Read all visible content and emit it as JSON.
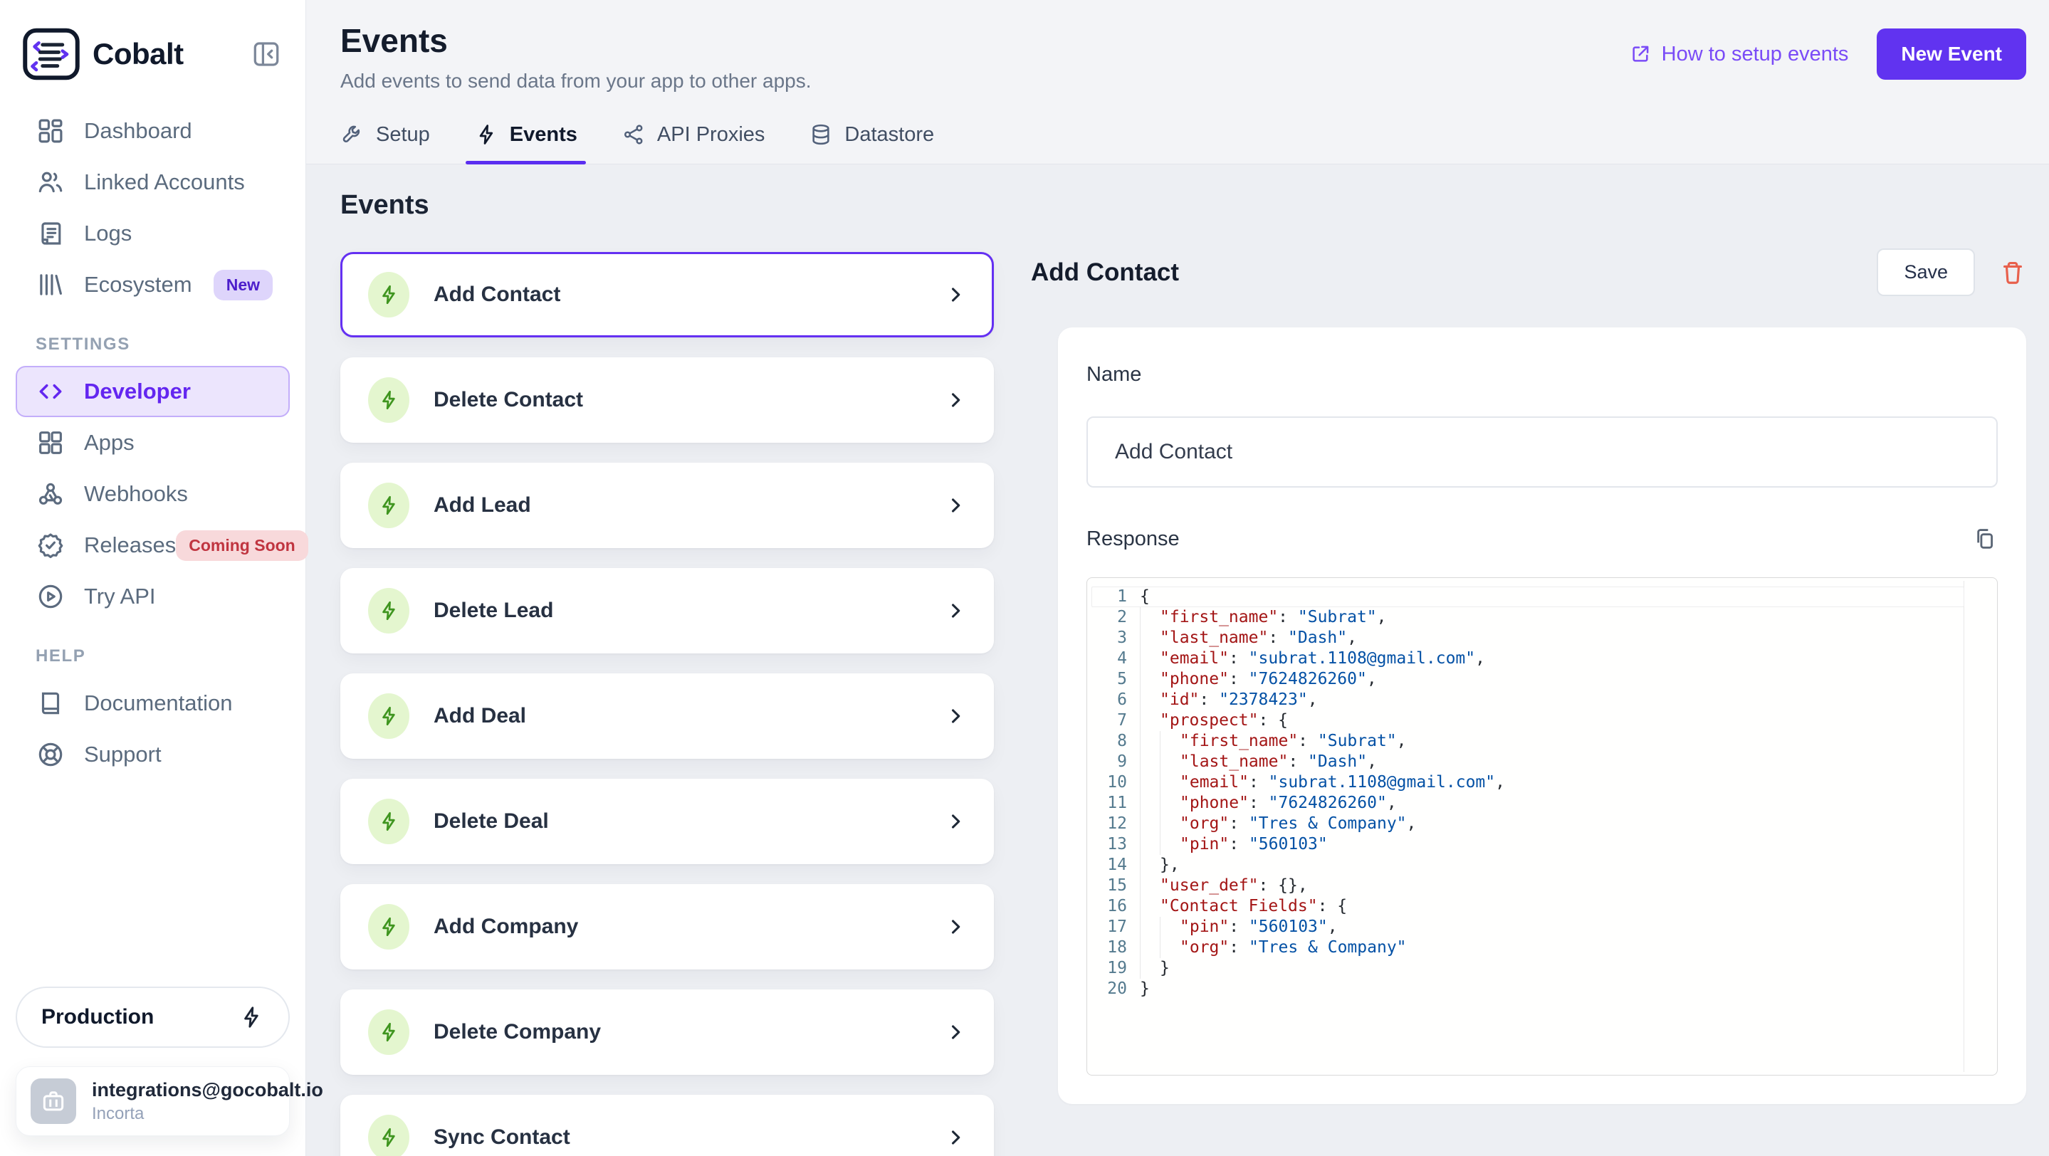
{
  "colors": {
    "accent": "#6133f0",
    "accent_soft_bg": "#ece5fd",
    "link": "#7a4bf7",
    "badge_new_bg": "#ded5fb",
    "badge_new_text": "#4c1ecb",
    "badge_soon_bg": "#f8d9db",
    "badge_soon_text": "#c03540",
    "event_icon_bg": "#e4f6cf",
    "event_icon_green": "#3f951f",
    "danger": "#e8604c",
    "code_key": "#a31515",
    "code_string": "#0451a5"
  },
  "sidebar": {
    "brand": "Cobalt",
    "sections": [
      {
        "label": "",
        "items": [
          {
            "label": "Dashboard",
            "icon": "dashboard"
          },
          {
            "label": "Linked Accounts",
            "icon": "users"
          },
          {
            "label": "Logs",
            "icon": "logs"
          },
          {
            "label": "Ecosystem",
            "icon": "ecosystem",
            "badge": {
              "text": "New",
              "style": "purple"
            }
          }
        ]
      },
      {
        "label": "SETTINGS",
        "items": [
          {
            "label": "Developer",
            "icon": "code",
            "active": true
          },
          {
            "label": "Apps",
            "icon": "apps"
          },
          {
            "label": "Webhooks",
            "icon": "webhook"
          },
          {
            "label": "Releases",
            "icon": "releases",
            "badge": {
              "text": "Coming Soon",
              "style": "red"
            }
          },
          {
            "label": "Try API",
            "icon": "play"
          }
        ]
      },
      {
        "label": "HELP",
        "items": [
          {
            "label": "Documentation",
            "icon": "book"
          },
          {
            "label": "Support",
            "icon": "lifebuoy"
          }
        ]
      }
    ],
    "environment": {
      "label": "Production",
      "icon": "bolt"
    },
    "account": {
      "email": "integrations@gocobalt.io",
      "org": "Incorta",
      "icon": "briefcase"
    }
  },
  "header": {
    "title": "Events",
    "subtitle": "Add events to send data from your app to other apps.",
    "link_label": "How to setup events",
    "new_event_label": "New Event",
    "tabs": [
      {
        "label": "Setup",
        "icon": "wrench"
      },
      {
        "label": "Events",
        "icon": "bolt",
        "active": true
      },
      {
        "label": "API Proxies",
        "icon": "proxies"
      },
      {
        "label": "Datastore",
        "icon": "database"
      }
    ]
  },
  "events": {
    "heading": "Events",
    "items": [
      {
        "label": "Add Contact",
        "selected": true
      },
      {
        "label": "Delete Contact"
      },
      {
        "label": "Add Lead"
      },
      {
        "label": "Delete Lead"
      },
      {
        "label": "Add Deal"
      },
      {
        "label": "Delete Deal"
      },
      {
        "label": "Add Company"
      },
      {
        "label": "Delete Company"
      },
      {
        "label": "Sync Contact"
      }
    ]
  },
  "detail": {
    "heading": "Add Contact",
    "save_label": "Save",
    "name_label": "Name",
    "name_value": "Add Contact",
    "response_label": "Response",
    "code_lines": [
      {
        "n": 1,
        "indent": 0,
        "current": true,
        "segs": [
          [
            "p",
            "{"
          ]
        ]
      },
      {
        "n": 2,
        "indent": 1,
        "segs": [
          [
            "k",
            "\"first_name\""
          ],
          [
            "p",
            ": "
          ],
          [
            "s",
            "\"Subrat\""
          ],
          [
            "p",
            ","
          ]
        ]
      },
      {
        "n": 3,
        "indent": 1,
        "segs": [
          [
            "k",
            "\"last_name\""
          ],
          [
            "p",
            ": "
          ],
          [
            "s",
            "\"Dash\""
          ],
          [
            "p",
            ","
          ]
        ]
      },
      {
        "n": 4,
        "indent": 1,
        "segs": [
          [
            "k",
            "\"email\""
          ],
          [
            "p",
            ": "
          ],
          [
            "s",
            "\"subrat.1108@gmail.com\""
          ],
          [
            "p",
            ","
          ]
        ]
      },
      {
        "n": 5,
        "indent": 1,
        "segs": [
          [
            "k",
            "\"phone\""
          ],
          [
            "p",
            ": "
          ],
          [
            "s",
            "\"7624826260\""
          ],
          [
            "p",
            ","
          ]
        ]
      },
      {
        "n": 6,
        "indent": 1,
        "segs": [
          [
            "k",
            "\"id\""
          ],
          [
            "p",
            ": "
          ],
          [
            "s",
            "\"2378423\""
          ],
          [
            "p",
            ","
          ]
        ]
      },
      {
        "n": 7,
        "indent": 1,
        "segs": [
          [
            "k",
            "\"prospect\""
          ],
          [
            "p",
            ": {"
          ]
        ]
      },
      {
        "n": 8,
        "indent": 2,
        "segs": [
          [
            "k",
            "\"first_name\""
          ],
          [
            "p",
            ": "
          ],
          [
            "s",
            "\"Subrat\""
          ],
          [
            "p",
            ","
          ]
        ]
      },
      {
        "n": 9,
        "indent": 2,
        "segs": [
          [
            "k",
            "\"last_name\""
          ],
          [
            "p",
            ": "
          ],
          [
            "s",
            "\"Dash\""
          ],
          [
            "p",
            ","
          ]
        ]
      },
      {
        "n": 10,
        "indent": 2,
        "segs": [
          [
            "k",
            "\"email\""
          ],
          [
            "p",
            ": "
          ],
          [
            "s",
            "\"subrat.1108@gmail.com\""
          ],
          [
            "p",
            ","
          ]
        ]
      },
      {
        "n": 11,
        "indent": 2,
        "segs": [
          [
            "k",
            "\"phone\""
          ],
          [
            "p",
            ": "
          ],
          [
            "s",
            "\"7624826260\""
          ],
          [
            "p",
            ","
          ]
        ]
      },
      {
        "n": 12,
        "indent": 2,
        "segs": [
          [
            "k",
            "\"org\""
          ],
          [
            "p",
            ": "
          ],
          [
            "s",
            "\"Tres & Company\""
          ],
          [
            "p",
            ","
          ]
        ]
      },
      {
        "n": 13,
        "indent": 2,
        "segs": [
          [
            "k",
            "\"pin\""
          ],
          [
            "p",
            ": "
          ],
          [
            "s",
            "\"560103\""
          ]
        ]
      },
      {
        "n": 14,
        "indent": 1,
        "segs": [
          [
            "p",
            "},"
          ]
        ]
      },
      {
        "n": 15,
        "indent": 1,
        "segs": [
          [
            "k",
            "\"user_def\""
          ],
          [
            "p",
            ": {},"
          ]
        ]
      },
      {
        "n": 16,
        "indent": 1,
        "segs": [
          [
            "k",
            "\"Contact Fields\""
          ],
          [
            "p",
            ": {"
          ]
        ]
      },
      {
        "n": 17,
        "indent": 2,
        "segs": [
          [
            "k",
            "\"pin\""
          ],
          [
            "p",
            ": "
          ],
          [
            "s",
            "\"560103\""
          ],
          [
            "p",
            ","
          ]
        ]
      },
      {
        "n": 18,
        "indent": 2,
        "segs": [
          [
            "k",
            "\"org\""
          ],
          [
            "p",
            ": "
          ],
          [
            "s",
            "\"Tres & Company\""
          ]
        ]
      },
      {
        "n": 19,
        "indent": 1,
        "segs": [
          [
            "p",
            "}"
          ]
        ]
      },
      {
        "n": 20,
        "indent": 0,
        "segs": [
          [
            "p",
            "}"
          ]
        ]
      }
    ]
  }
}
